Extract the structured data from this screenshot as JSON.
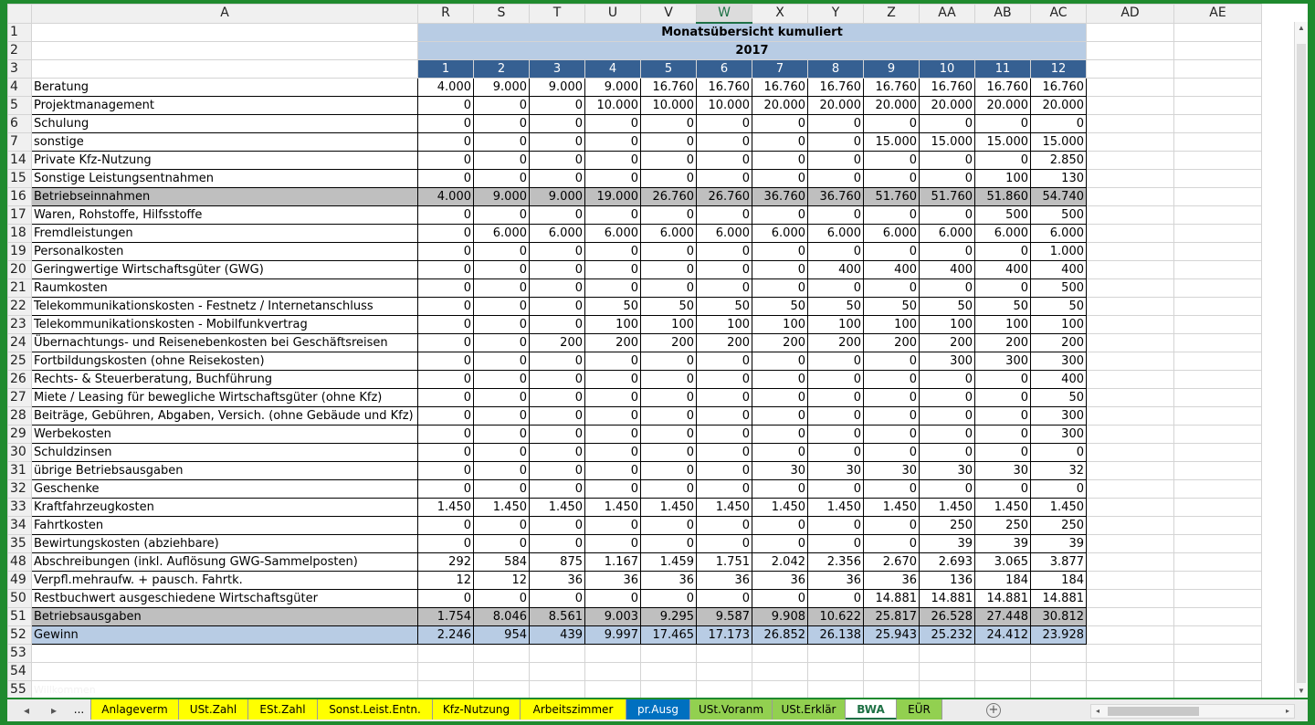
{
  "columns": [
    "A",
    "R",
    "S",
    "T",
    "U",
    "V",
    "W",
    "X",
    "Y",
    "Z",
    "AA",
    "AB",
    "AC",
    "AD",
    "AE"
  ],
  "selected_column": "W",
  "title": {
    "line1": "Monatsübersicht kumuliert",
    "line2": "2017"
  },
  "months": [
    "1",
    "2",
    "3",
    "4",
    "5",
    "6",
    "7",
    "8",
    "9",
    "10",
    "11",
    "12"
  ],
  "rows": [
    {
      "n": "4",
      "label": "Beratung",
      "values": [
        "4.000",
        "9.000",
        "9.000",
        "9.000",
        "16.760",
        "16.760",
        "16.760",
        "16.760",
        "16.760",
        "16.760",
        "16.760",
        "16.760"
      ]
    },
    {
      "n": "5",
      "label": "Projektmanagement",
      "values": [
        "0",
        "0",
        "0",
        "10.000",
        "10.000",
        "10.000",
        "20.000",
        "20.000",
        "20.000",
        "20.000",
        "20.000",
        "20.000"
      ]
    },
    {
      "n": "6",
      "label": "Schulung",
      "values": [
        "0",
        "0",
        "0",
        "0",
        "0",
        "0",
        "0",
        "0",
        "0",
        "0",
        "0",
        "0"
      ]
    },
    {
      "n": "7",
      "label": "sonstige",
      "values": [
        "0",
        "0",
        "0",
        "0",
        "0",
        "0",
        "0",
        "0",
        "15.000",
        "15.000",
        "15.000",
        "15.000"
      ]
    },
    {
      "n": "14",
      "label": "Private Kfz-Nutzung",
      "values": [
        "0",
        "0",
        "0",
        "0",
        "0",
        "0",
        "0",
        "0",
        "0",
        "0",
        "0",
        "2.850"
      ]
    },
    {
      "n": "15",
      "label": "Sonstige Leistungsentnahmen",
      "values": [
        "0",
        "0",
        "0",
        "0",
        "0",
        "0",
        "0",
        "0",
        "0",
        "0",
        "100",
        "130"
      ]
    },
    {
      "n": "16",
      "label": "Betriebseinnahmen",
      "type": "sum",
      "values": [
        "4.000",
        "9.000",
        "9.000",
        "19.000",
        "26.760",
        "26.760",
        "36.760",
        "36.760",
        "51.760",
        "51.760",
        "51.860",
        "54.740"
      ]
    },
    {
      "n": "17",
      "label": "Waren, Rohstoffe, Hilfsstoffe",
      "values": [
        "0",
        "0",
        "0",
        "0",
        "0",
        "0",
        "0",
        "0",
        "0",
        "0",
        "500",
        "500"
      ]
    },
    {
      "n": "18",
      "label": "Fremdleistungen",
      "values": [
        "0",
        "6.000",
        "6.000",
        "6.000",
        "6.000",
        "6.000",
        "6.000",
        "6.000",
        "6.000",
        "6.000",
        "6.000",
        "6.000"
      ]
    },
    {
      "n": "19",
      "label": "Personalkosten",
      "values": [
        "0",
        "0",
        "0",
        "0",
        "0",
        "0",
        "0",
        "0",
        "0",
        "0",
        "0",
        "1.000"
      ]
    },
    {
      "n": "20",
      "label": "Geringwertige Wirtschaftsgüter (GWG)",
      "values": [
        "0",
        "0",
        "0",
        "0",
        "0",
        "0",
        "0",
        "400",
        "400",
        "400",
        "400",
        "400"
      ]
    },
    {
      "n": "21",
      "label": "Raumkosten",
      "values": [
        "0",
        "0",
        "0",
        "0",
        "0",
        "0",
        "0",
        "0",
        "0",
        "0",
        "0",
        "500"
      ]
    },
    {
      "n": "22",
      "label": "Telekommunikationskosten - Festnetz / Internetanschluss",
      "values": [
        "0",
        "0",
        "0",
        "50",
        "50",
        "50",
        "50",
        "50",
        "50",
        "50",
        "50",
        "50"
      ]
    },
    {
      "n": "23",
      "label": "Telekommunikationskosten - Mobilfunkvertrag",
      "values": [
        "0",
        "0",
        "0",
        "100",
        "100",
        "100",
        "100",
        "100",
        "100",
        "100",
        "100",
        "100"
      ]
    },
    {
      "n": "24",
      "label": "Übernachtungs- und Reisenebenkosten bei Geschäftsreisen",
      "values": [
        "0",
        "0",
        "200",
        "200",
        "200",
        "200",
        "200",
        "200",
        "200",
        "200",
        "200",
        "200"
      ]
    },
    {
      "n": "25",
      "label": "Fortbildungskosten (ohne Reisekosten)",
      "values": [
        "0",
        "0",
        "0",
        "0",
        "0",
        "0",
        "0",
        "0",
        "0",
        "300",
        "300",
        "300"
      ]
    },
    {
      "n": "26",
      "label": "Rechts- & Steuerberatung, Buchführung",
      "values": [
        "0",
        "0",
        "0",
        "0",
        "0",
        "0",
        "0",
        "0",
        "0",
        "0",
        "0",
        "400"
      ]
    },
    {
      "n": "27",
      "label": "Miete / Leasing für bewegliche Wirtschaftsgüter (ohne Kfz)",
      "values": [
        "0",
        "0",
        "0",
        "0",
        "0",
        "0",
        "0",
        "0",
        "0",
        "0",
        "0",
        "50"
      ]
    },
    {
      "n": "28",
      "label": "Beiträge, Gebühren, Abgaben, Versich. (ohne Gebäude und Kfz)",
      "values": [
        "0",
        "0",
        "0",
        "0",
        "0",
        "0",
        "0",
        "0",
        "0",
        "0",
        "0",
        "300"
      ]
    },
    {
      "n": "29",
      "label": "Werbekosten",
      "values": [
        "0",
        "0",
        "0",
        "0",
        "0",
        "0",
        "0",
        "0",
        "0",
        "0",
        "0",
        "300"
      ]
    },
    {
      "n": "30",
      "label": "Schuldzinsen",
      "values": [
        "0",
        "0",
        "0",
        "0",
        "0",
        "0",
        "0",
        "0",
        "0",
        "0",
        "0",
        "0"
      ]
    },
    {
      "n": "31",
      "label": "übrige Betriebsausgaben",
      "values": [
        "0",
        "0",
        "0",
        "0",
        "0",
        "0",
        "30",
        "30",
        "30",
        "30",
        "30",
        "32"
      ]
    },
    {
      "n": "32",
      "label": "Geschenke",
      "values": [
        "0",
        "0",
        "0",
        "0",
        "0",
        "0",
        "0",
        "0",
        "0",
        "0",
        "0",
        "0"
      ]
    },
    {
      "n": "33",
      "label": "Kraftfahrzeugkosten",
      "values": [
        "1.450",
        "1.450",
        "1.450",
        "1.450",
        "1.450",
        "1.450",
        "1.450",
        "1.450",
        "1.450",
        "1.450",
        "1.450",
        "1.450"
      ]
    },
    {
      "n": "34",
      "label": "Fahrtkosten",
      "values": [
        "0",
        "0",
        "0",
        "0",
        "0",
        "0",
        "0",
        "0",
        "0",
        "250",
        "250",
        "250"
      ]
    },
    {
      "n": "35",
      "label": "Bewirtungskosten (abziehbare)",
      "values": [
        "0",
        "0",
        "0",
        "0",
        "0",
        "0",
        "0",
        "0",
        "0",
        "39",
        "39",
        "39"
      ]
    },
    {
      "n": "48",
      "label": "Abschreibungen (inkl. Auflösung GWG-Sammelposten)",
      "values": [
        "292",
        "584",
        "875",
        "1.167",
        "1.459",
        "1.751",
        "2.042",
        "2.356",
        "2.670",
        "2.693",
        "3.065",
        "3.877"
      ]
    },
    {
      "n": "49",
      "label": "Verpfl.mehraufw. + pausch. Fahrtk.",
      "values": [
        "12",
        "12",
        "36",
        "36",
        "36",
        "36",
        "36",
        "36",
        "36",
        "136",
        "184",
        "184"
      ]
    },
    {
      "n": "50",
      "label": "Restbuchwert ausgeschiedene Wirtschaftsgüter",
      "values": [
        "0",
        "0",
        "0",
        "0",
        "0",
        "0",
        "0",
        "0",
        "14.881",
        "14.881",
        "14.881",
        "14.881"
      ]
    },
    {
      "n": "51",
      "label": "Betriebsausgaben",
      "type": "sum",
      "values": [
        "1.754",
        "8.046",
        "8.561",
        "9.003",
        "9.295",
        "9.587",
        "9.908",
        "10.622",
        "25.817",
        "26.528",
        "27.448",
        "30.812"
      ]
    },
    {
      "n": "52",
      "label": "Gewinn",
      "type": "gain",
      "values": [
        "2.246",
        "954",
        "439",
        "9.997",
        "17.465",
        "17.173",
        "26.852",
        "26.138",
        "25.943",
        "25.232",
        "24.412",
        "23.928"
      ]
    }
  ],
  "empty_rows": [
    "53",
    "54",
    "55"
  ],
  "ghost_text": "Willkommen",
  "tabs": [
    {
      "label": "...",
      "color": "none"
    },
    {
      "label": "Anlageverm",
      "color": "yellow"
    },
    {
      "label": "USt.Zahl",
      "color": "yellow"
    },
    {
      "label": "ESt.Zahl",
      "color": "yellow"
    },
    {
      "label": "Sonst.Leist.Entn.",
      "color": "yellow"
    },
    {
      "label": "Kfz-Nutzung",
      "color": "yellow"
    },
    {
      "label": "Arbeitszimmer",
      "color": "yellow"
    },
    {
      "label": "pr.Ausg",
      "color": "blue"
    },
    {
      "label": "USt.Voranm",
      "color": "green"
    },
    {
      "label": "USt.Erklär",
      "color": "green"
    },
    {
      "label": "BWA",
      "color": "active"
    },
    {
      "label": "EÜR",
      "color": "green"
    }
  ],
  "icons": {
    "tab_prev": "◂",
    "tab_next": "▸",
    "add_sheet": "+",
    "scroll_up": "▲",
    "scroll_down": "▼",
    "scroll_left": "◂",
    "scroll_right": "▸"
  }
}
